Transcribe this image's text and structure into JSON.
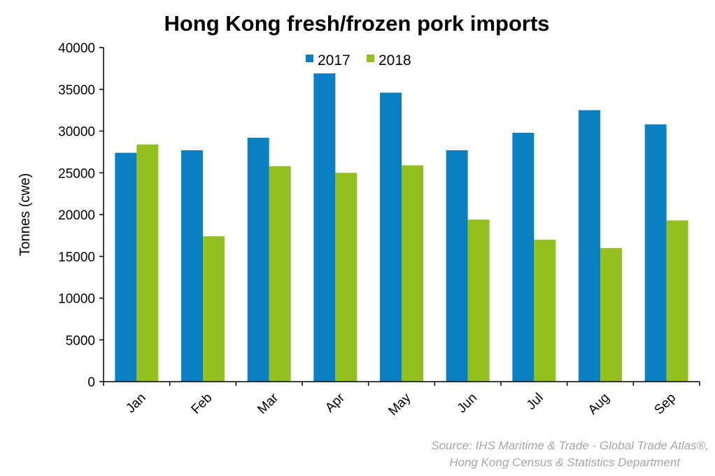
{
  "chart_data": {
    "type": "bar",
    "title": "Hong Kong fresh/frozen pork imports",
    "xlabel": "",
    "ylabel": "Tonnes (cwe)",
    "categories": [
      "Jan",
      "Feb",
      "Mar",
      "Apr",
      "May",
      "Jun",
      "Jul",
      "Aug",
      "Sep"
    ],
    "series": [
      {
        "name": "2017",
        "color": "#0a7fc2",
        "values": [
          27400,
          27700,
          29200,
          36900,
          34600,
          27700,
          29800,
          32500,
          30800
        ]
      },
      {
        "name": "2018",
        "color": "#93bf1f",
        "values": [
          28400,
          17400,
          25800,
          25000,
          25900,
          19400,
          17000,
          16000,
          19300
        ]
      }
    ],
    "ylim": [
      0,
      40000
    ],
    "yticks": [
      "0",
      "5000",
      "10000",
      "15000",
      "20000",
      "25000",
      "30000",
      "35000",
      "40000"
    ],
    "grid": false,
    "legend_position": "top-center",
    "source": [
      "Source: IHS Maritime & Trade - Global Trade Atlas®,",
      "Hong Kong Census & Statistics Department"
    ]
  }
}
